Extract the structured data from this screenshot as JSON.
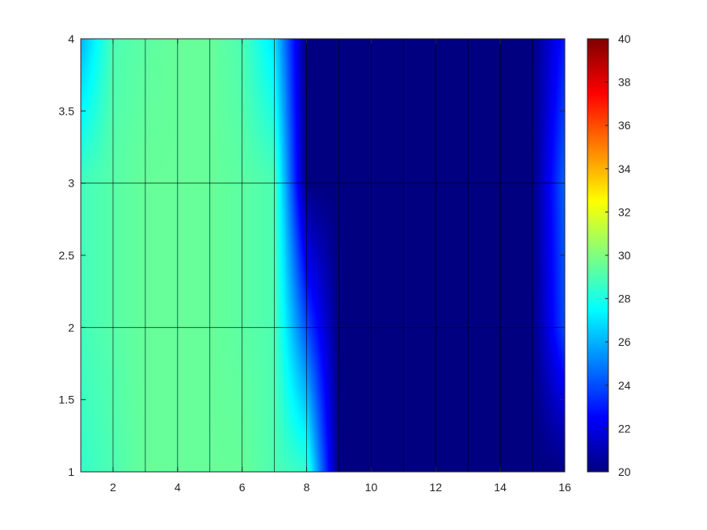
{
  "chart_data": {
    "type": "heatmap",
    "shading": "interp",
    "colormap": "jet",
    "x": [
      1,
      2,
      3,
      4,
      5,
      6,
      7,
      8,
      9,
      10,
      11,
      12,
      13,
      14,
      15,
      16
    ],
    "y": [
      1,
      2,
      3,
      4
    ],
    "z": [
      [
        28.5,
        29.0,
        29.5,
        29.5,
        29.5,
        29.5,
        29.0,
        28.5,
        20,
        20,
        20,
        20,
        20,
        20,
        20,
        20
      ],
      [
        28.8,
        29.2,
        29.5,
        29.5,
        29.5,
        29.3,
        29.0,
        24.0,
        20,
        20,
        20,
        20,
        20,
        20,
        20,
        24.0
      ],
      [
        28.8,
        29.2,
        29.5,
        29.5,
        29.5,
        29.3,
        29.0,
        20,
        20,
        20,
        20,
        20,
        20,
        20,
        20,
        24.5
      ],
      [
        26.0,
        29.0,
        29.3,
        29.5,
        29.5,
        29.0,
        27.0,
        20,
        20,
        20,
        20,
        20,
        20,
        20,
        20,
        23.0
      ]
    ],
    "xlim": [
      1,
      16
    ],
    "ylim": [
      1,
      4
    ],
    "clim": [
      20,
      40
    ],
    "xticks": [
      2,
      4,
      6,
      8,
      10,
      12,
      14,
      16
    ],
    "xtick_labels": [
      "2",
      "4",
      "6",
      "8",
      "10",
      "12",
      "14",
      "16"
    ],
    "yticks": [
      1,
      1.5,
      2,
      2.5,
      3,
      3.5,
      4
    ],
    "ytick_labels": [
      "1",
      "1.5",
      "2",
      "2.5",
      "3",
      "3.5",
      "4"
    ],
    "colorbar_ticks": [
      20,
      22,
      24,
      26,
      28,
      30,
      32,
      34,
      36,
      38,
      40
    ],
    "colorbar_tick_labels": [
      "20",
      "22",
      "24",
      "26",
      "28",
      "30",
      "32",
      "34",
      "36",
      "38",
      "40"
    ],
    "colorbar_position": "right",
    "mesh_edges": true,
    "mesh_edge_color": "#000000",
    "title": "",
    "xlabel": "",
    "ylabel": ""
  }
}
